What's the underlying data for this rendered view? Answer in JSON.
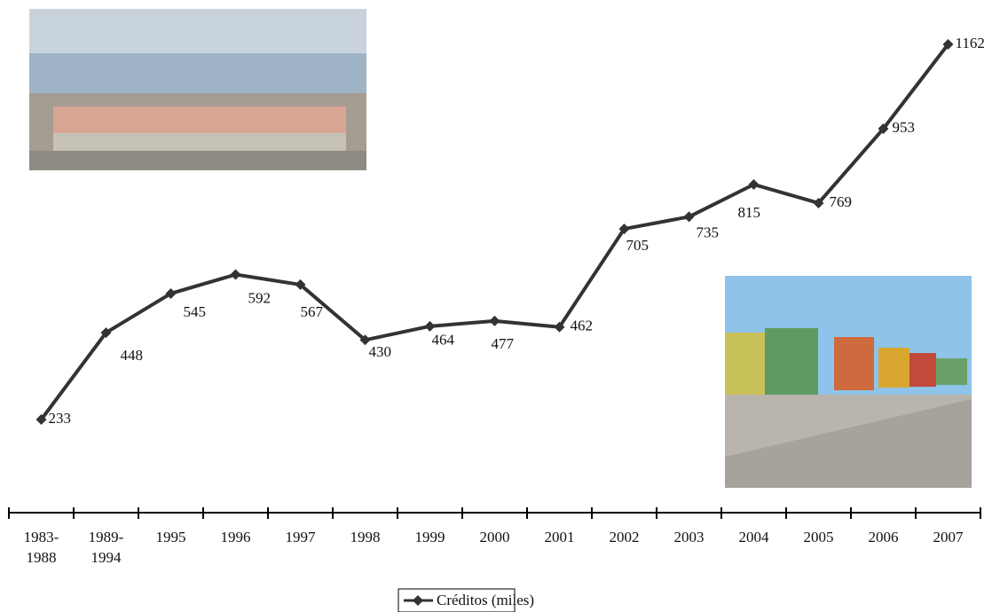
{
  "chart_data": {
    "type": "line",
    "categories": [
      "1983-1988",
      "1989-1994",
      "1995",
      "1996",
      "1997",
      "1998",
      "1999",
      "2000",
      "2001",
      "2002",
      "2003",
      "2004",
      "2005",
      "2006",
      "2007"
    ],
    "series": [
      {
        "name": "Créditos (miles)",
        "color": "#333333",
        "values": [
          233,
          448,
          545,
          592,
          567,
          430,
          464,
          477,
          462,
          705,
          735,
          815,
          769,
          953,
          1162
        ]
      }
    ],
    "legend": "bottom"
  }
}
